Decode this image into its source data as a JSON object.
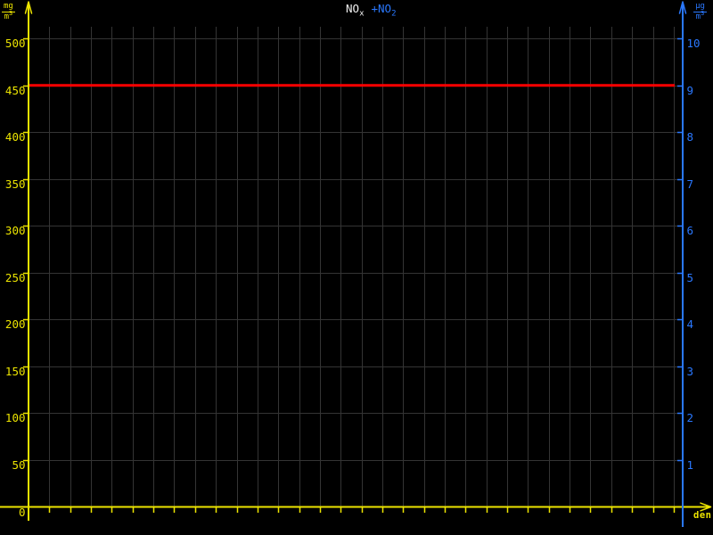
{
  "window": {
    "background": "#000000"
  },
  "title": {
    "series1": {
      "base": "NO",
      "sub": "x",
      "color": "#f0f0f0"
    },
    "series2": {
      "base": "+NO",
      "sub": "2",
      "color": "#2a78ff"
    }
  },
  "axes": {
    "left": {
      "unit_numerator": "mg",
      "unit_denominator_base": "m",
      "unit_denominator_exponent": "3",
      "color": "#ece400"
    },
    "right": {
      "unit_numerator": "µg",
      "unit_denominator_base": "m",
      "unit_denominator_exponent": "3",
      "color": "#2a78ff"
    },
    "x": {
      "label": "den",
      "color": "#ece400"
    }
  },
  "chart_data": {
    "type": "line",
    "title_legend": [
      "NOx",
      "+NO2"
    ],
    "series": [
      {
        "name": "NOx",
        "color": "#f0f0f0",
        "x": [],
        "values": []
      },
      {
        "name": "NO2",
        "color": "#2a78ff",
        "x": [],
        "values": []
      }
    ],
    "x_axis": {
      "label": "den",
      "gridlines": 31,
      "tick_labels_visible": false
    },
    "y_axis_left": {
      "unit": "mg/m3",
      "min": 0,
      "max": 505,
      "tick_step": 50,
      "ticks": [
        0,
        50,
        100,
        150,
        200,
        250,
        300,
        350,
        400,
        450,
        500
      ],
      "color": "#ece400"
    },
    "y_axis_right": {
      "unit": "µg/m3",
      "min": 0,
      "max": 10.1,
      "tick_step": 1,
      "ticks": [
        1,
        2,
        3,
        4,
        5,
        6,
        7,
        8,
        9,
        10
      ],
      "color": "#2a78ff"
    },
    "reference_line": {
      "value": 450,
      "axis": "left",
      "color": "#ff0000"
    },
    "grid": true,
    "grid_color": "#343434",
    "legend_position": "top-center",
    "background": "#000000"
  }
}
